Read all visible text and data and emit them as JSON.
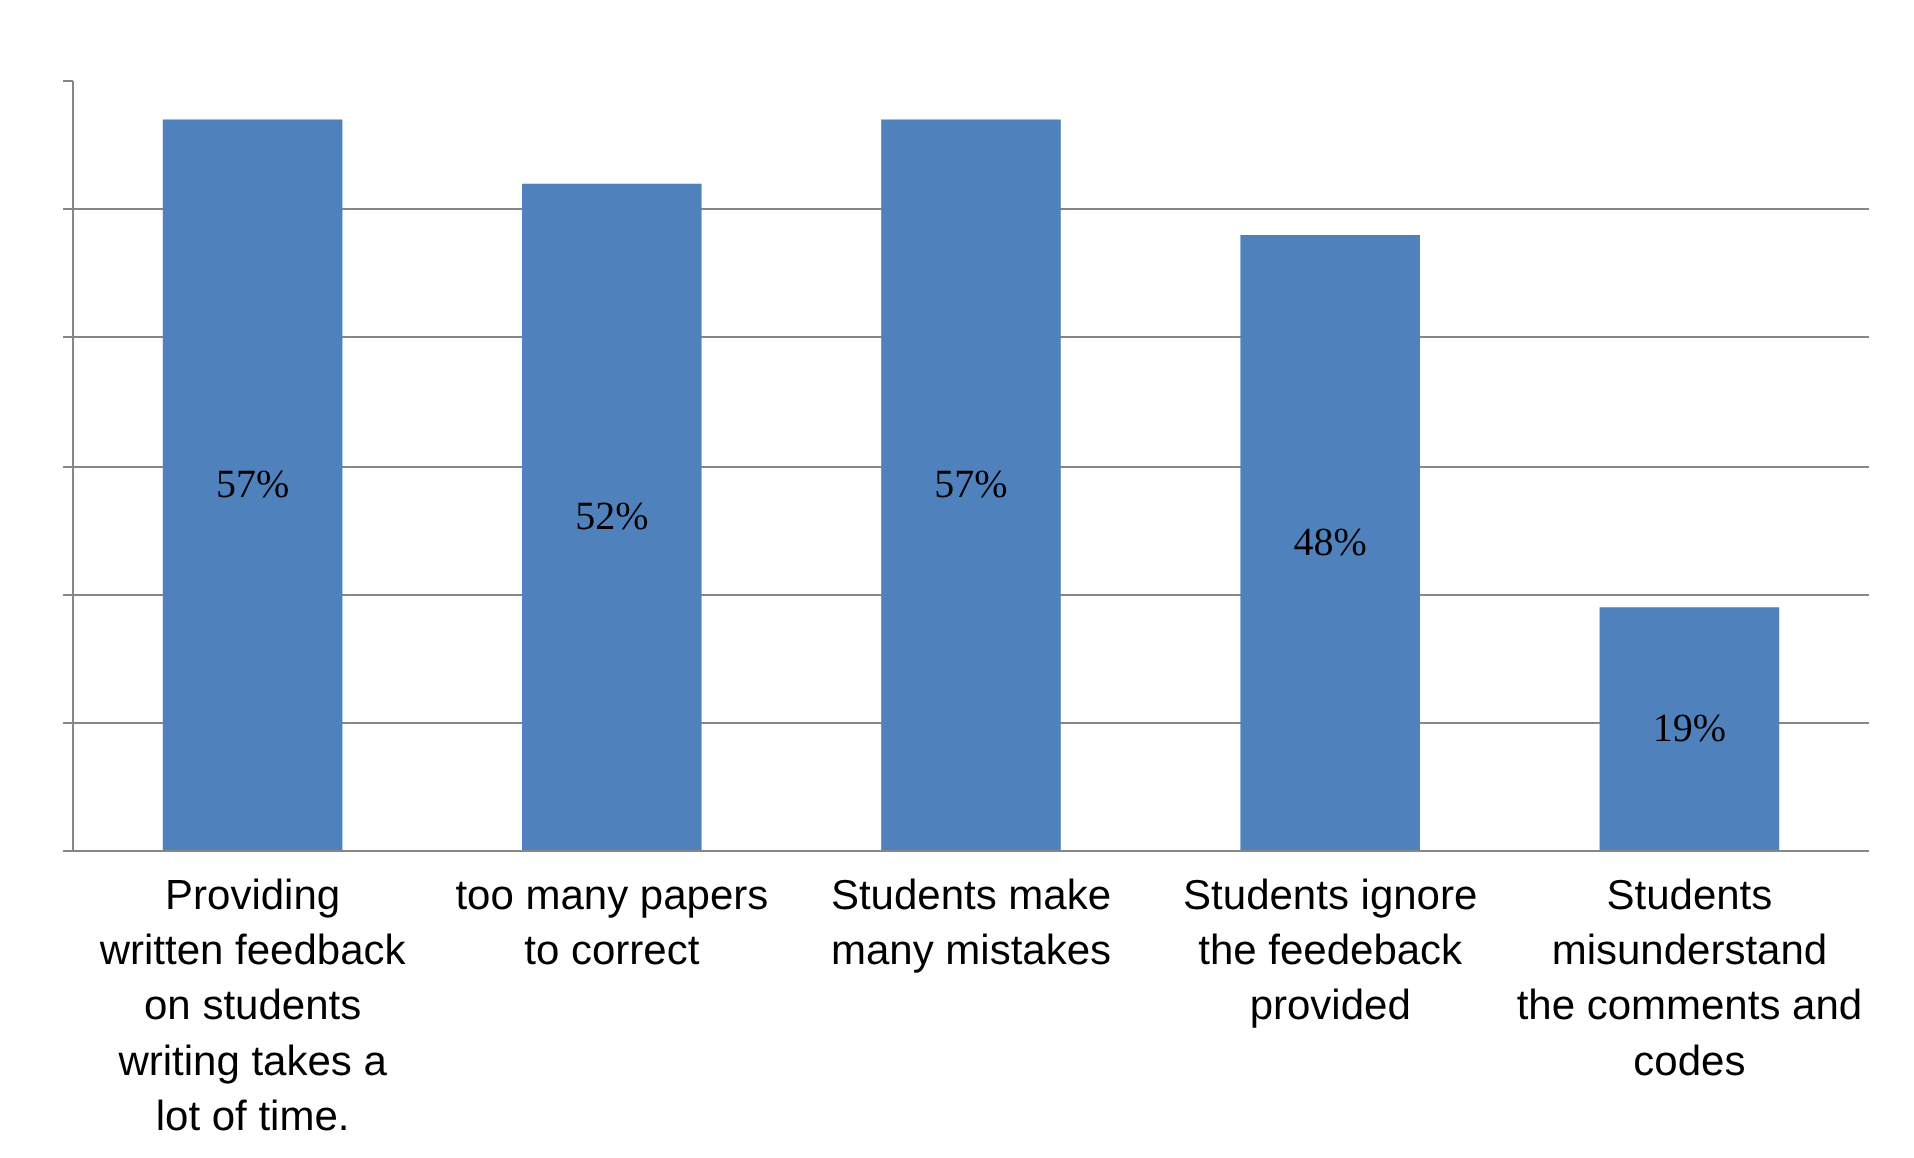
{
  "chart_data": {
    "type": "bar",
    "categories": [
      "Providing written feedback on students writing takes a lot of time.",
      "too many papers to correct",
      "Students make many mistakes",
      "Students ignore the feedeback provided",
      "Students misunderstand the comments and codes"
    ],
    "values": [
      57,
      52,
      57,
      48,
      19
    ],
    "value_labels": [
      "57%",
      "52%",
      "57%",
      "48%",
      "19%"
    ],
    "color": "#4f81bd",
    "ylim": [
      0,
      60
    ],
    "yticks": [
      {
        "value": 0,
        "label": null
      },
      {
        "value": 10,
        "label": null
      },
      {
        "value": 20,
        "label": null
      },
      {
        "value": 30,
        "label": null
      },
      {
        "value": 40,
        "label": null
      },
      {
        "value": 50,
        "label": null
      },
      {
        "value": 60,
        "label": null
      }
    ],
    "grid": "y",
    "tick_labels": "x"
  }
}
